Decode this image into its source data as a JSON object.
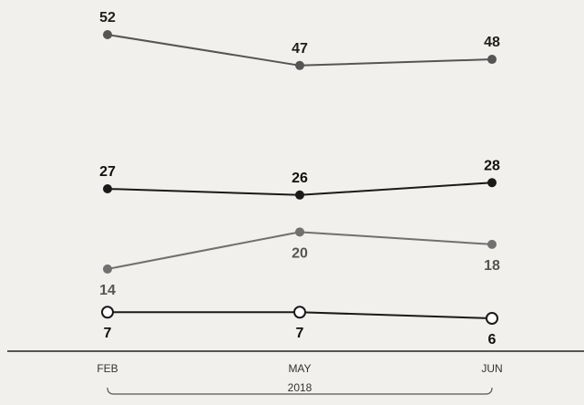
{
  "chart_data": {
    "type": "line",
    "categories": [
      "FEB",
      "MAY",
      "JUN"
    ],
    "group_label": "2018",
    "title": "",
    "xlabel": "",
    "ylabel": "",
    "ylim": [
      5,
      53
    ],
    "grid": false,
    "series": [
      {
        "values": [
          52,
          47,
          48
        ],
        "color": "#555555",
        "marker": "filled",
        "label_color": "#1e1e1e"
      },
      {
        "values": [
          27,
          26,
          28
        ],
        "color": "#1a1a1a",
        "marker": "filled",
        "label_color": "#111111"
      },
      {
        "values": [
          14,
          20,
          18
        ],
        "color": "#707070",
        "marker": "filled",
        "label_color": "#555555"
      },
      {
        "values": [
          7,
          7,
          6
        ],
        "color": "#1a1a1a",
        "marker": "hollow",
        "label_color": "#111111"
      }
    ]
  }
}
